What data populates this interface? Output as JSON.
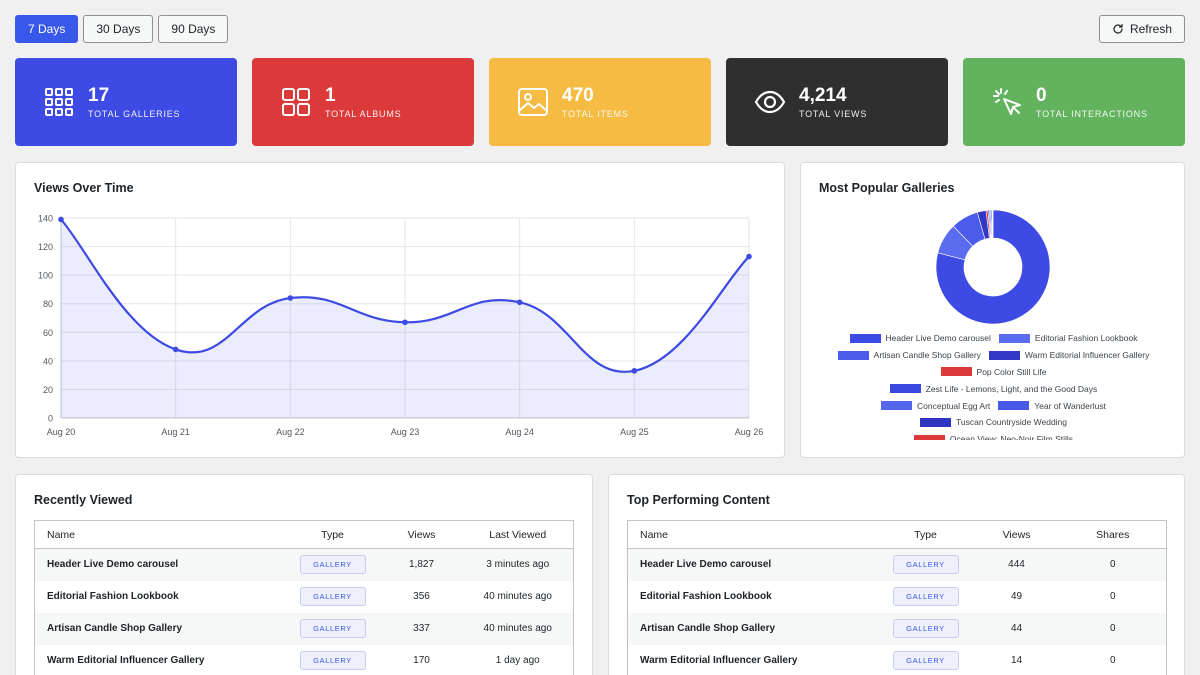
{
  "range_buttons": [
    {
      "label": "7 Days",
      "active": true
    },
    {
      "label": "30 Days",
      "active": false
    },
    {
      "label": "90 Days",
      "active": false
    }
  ],
  "refresh_label": "Refresh",
  "stats": [
    {
      "value": "17",
      "label": "Total Galleries",
      "color": "#3d4ae3",
      "icon": "grid-icon"
    },
    {
      "value": "1",
      "label": "Total Albums",
      "color": "#dc3a3a",
      "icon": "albums-icon"
    },
    {
      "value": "470",
      "label": "Total Items",
      "color": "#f5bb42",
      "icon": "image-icon"
    },
    {
      "value": "4,214",
      "label": "Total Views",
      "color": "#2f2f30",
      "icon": "eye-icon"
    },
    {
      "value": "0",
      "label": "Total Interactions",
      "color": "#62b25e",
      "icon": "pointer-click-icon"
    }
  ],
  "views_panel": {
    "title": "Views Over Time"
  },
  "popular_panel": {
    "title": "Most Popular Galleries"
  },
  "chart_data": [
    {
      "type": "line",
      "title": "Views Over Time",
      "x": [
        "Aug 20",
        "Aug 21",
        "Aug 22",
        "Aug 23",
        "Aug 24",
        "Aug 25",
        "Aug 26"
      ],
      "values": [
        139,
        48,
        84,
        67,
        81,
        33,
        113
      ],
      "ylim": [
        0,
        140
      ],
      "yticks": [
        0,
        20,
        40,
        60,
        80,
        100,
        120,
        140
      ],
      "grid": true,
      "color": "#3d4ae3",
      "fill": "rgba(61,74,227,0.10)"
    },
    {
      "type": "pie",
      "title": "Most Popular Galleries",
      "donut": true,
      "legend_position": "bottom",
      "labels": [
        "Header Live Demo carousel",
        "Editorial Fashion Lookbook",
        "Artisan Candle Shop Gallery",
        "Warm Editorial Influencer Gallery",
        "Pop Color Still Life",
        "Zest Life - Lemons, Light, and the Good Days",
        "Conceptual Egg Art",
        "Year of Wanderlust",
        "Tuscan Countryside Wedding",
        "Ocean View: Neo-Noir Film Stills"
      ],
      "values": [
        444,
        49,
        44,
        14,
        3,
        2,
        2,
        2,
        1,
        1
      ],
      "colors": [
        "#3d4ae3",
        "#5b6cf0",
        "#4b5bea",
        "#3237c6",
        "#dc3a3a",
        "#3a48e0",
        "#5565ec",
        "#4a5ae8",
        "#2d35c0",
        "#dc3a3a"
      ]
    }
  ],
  "recent_panel": {
    "title": "Recently Viewed",
    "columns": [
      "Name",
      "Type",
      "Views",
      "Last Viewed"
    ],
    "rows": [
      {
        "name": "Header Live Demo carousel",
        "type": "GALLERY",
        "views": "1,827",
        "last": "3 minutes ago"
      },
      {
        "name": "Editorial Fashion Lookbook",
        "type": "GALLERY",
        "views": "356",
        "last": "40 minutes ago"
      },
      {
        "name": "Artisan Candle Shop Gallery",
        "type": "GALLERY",
        "views": "337",
        "last": "40 minutes ago"
      },
      {
        "name": "Warm Editorial Influencer Gallery",
        "type": "GALLERY",
        "views": "170",
        "last": "1 day ago"
      }
    ]
  },
  "top_panel": {
    "title": "Top Performing Content",
    "columns": [
      "Name",
      "Type",
      "Views",
      "Shares"
    ],
    "rows": [
      {
        "name": "Header Live Demo carousel",
        "type": "GALLERY",
        "views": "444",
        "shares": "0"
      },
      {
        "name": "Editorial Fashion Lookbook",
        "type": "GALLERY",
        "views": "49",
        "shares": "0"
      },
      {
        "name": "Artisan Candle Shop Gallery",
        "type": "GALLERY",
        "views": "44",
        "shares": "0"
      },
      {
        "name": "Warm Editorial Influencer Gallery",
        "type": "GALLERY",
        "views": "14",
        "shares": "0"
      }
    ]
  }
}
